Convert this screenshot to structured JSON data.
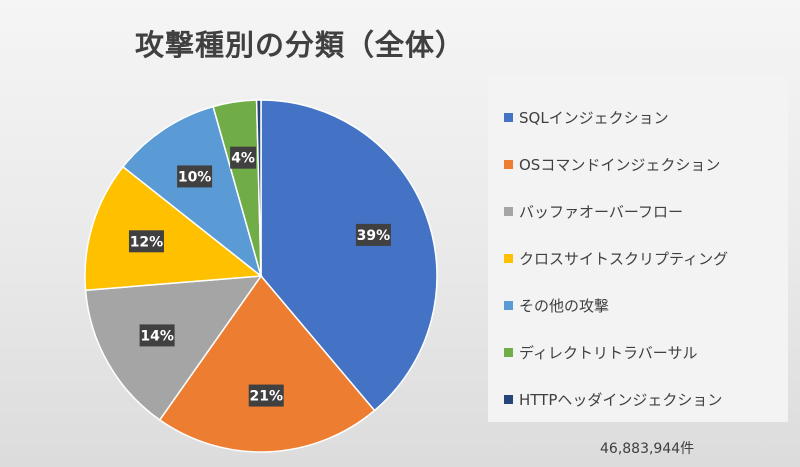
{
  "chart_data": {
    "type": "pie",
    "title": "攻撃種別の分類（全体）",
    "categories": [
      "SQLインジェクション",
      "OSコマンドインジェクション",
      "バッファオーバーフロー",
      "クロスサイトスクリプティング",
      "その他の攻撃",
      "ディレクトリトラバーサル",
      "HTTPヘッダインジェクション"
    ],
    "values": [
      39,
      21,
      14,
      12,
      10,
      4,
      0.4
    ],
    "data_labels": [
      "39%",
      "21%",
      "14%",
      "12%",
      "10%",
      "4%",
      ""
    ],
    "colors": [
      "#4472c4",
      "#ed7d31",
      "#a5a5a5",
      "#ffc000",
      "#5b9bd5",
      "#70ad47",
      "#264478"
    ],
    "legend_position": "right",
    "note": "46,883,944件"
  }
}
